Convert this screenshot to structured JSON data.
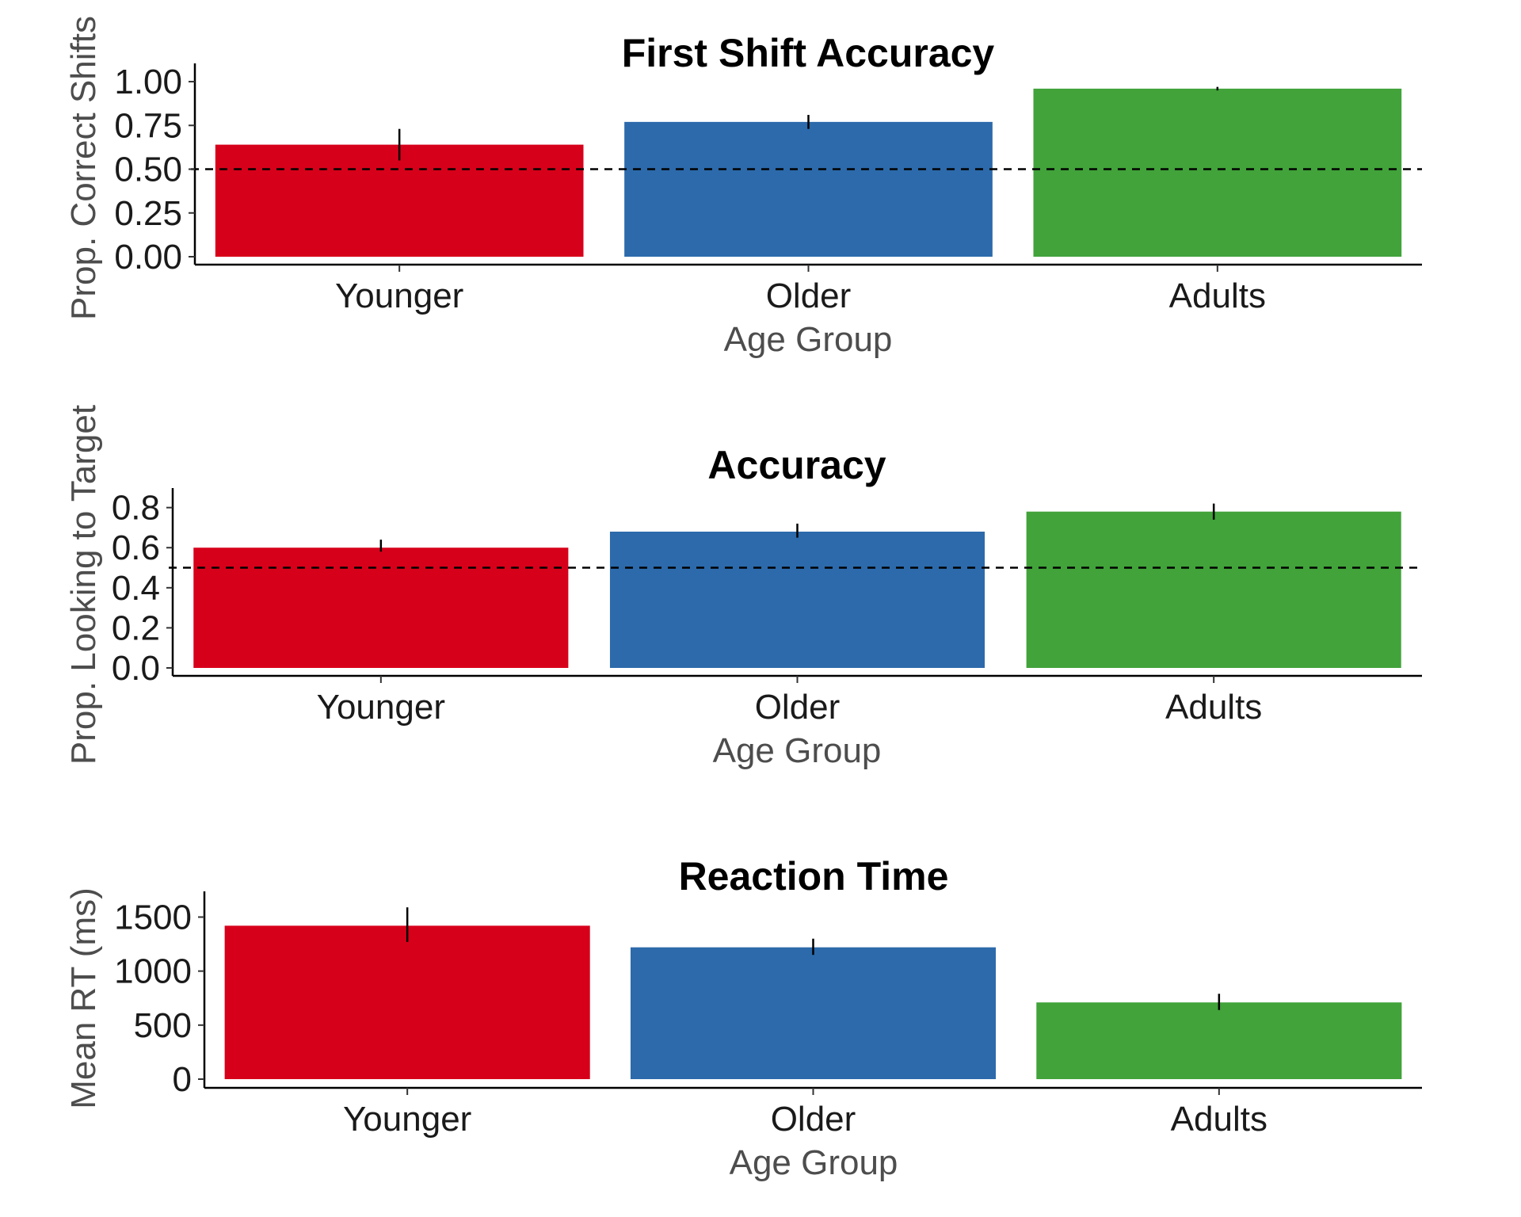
{
  "chart_data": [
    {
      "type": "bar",
      "title": "First Shift Accuracy",
      "xlabel": "Age Group",
      "ylabel": "Prop. Correct Shifts",
      "categories": [
        "Younger",
        "Older",
        "Adults"
      ],
      "values": [
        0.64,
        0.77,
        0.96
      ],
      "error": [
        [
          0.55,
          0.73
        ],
        [
          0.73,
          0.81
        ],
        [
          0.95,
          0.97
        ]
      ],
      "ylim": [
        0,
        1.05
      ],
      "yticks": [
        0,
        0.25,
        0.5,
        0.75,
        1.0
      ],
      "ytick_labels": [
        "0.00",
        "0.25",
        "0.50",
        "0.75",
        "1.00"
      ],
      "reference_line": 0.5,
      "grid": false,
      "colors": [
        "#d7001a",
        "#2c6aab",
        "#41a33a"
      ]
    },
    {
      "type": "bar",
      "title": "Accuracy",
      "xlabel": "Age Group",
      "ylabel": "Prop. Looking to Target",
      "categories": [
        "Younger",
        "Older",
        "Adults"
      ],
      "values": [
        0.6,
        0.68,
        0.78
      ],
      "error": [
        [
          0.58,
          0.64
        ],
        [
          0.65,
          0.72
        ],
        [
          0.74,
          0.82
        ]
      ],
      "ylim": [
        0,
        0.85
      ],
      "yticks": [
        0,
        0.2,
        0.4,
        0.6,
        0.8
      ],
      "ytick_labels": [
        "0.0",
        "0.2",
        "0.4",
        "0.6",
        "0.8"
      ],
      "reference_line": 0.5,
      "grid": false,
      "colors": [
        "#d7001a",
        "#2c6aab",
        "#41a33a"
      ]
    },
    {
      "type": "bar",
      "title": "Reaction Time",
      "xlabel": "Age Group",
      "ylabel": "Mean RT (ms)",
      "categories": [
        "Younger",
        "Older",
        "Adults"
      ],
      "values": [
        1420,
        1220,
        710
      ],
      "error": [
        [
          1270,
          1590
        ],
        [
          1150,
          1300
        ],
        [
          640,
          790
        ]
      ],
      "ylim": [
        0,
        1650
      ],
      "yticks": [
        0,
        500,
        1000,
        1500
      ],
      "ytick_labels": [
        "0",
        "500",
        "1000",
        "1500"
      ],
      "grid": false,
      "colors": [
        "#d7001a",
        "#2c6aab",
        "#41a33a"
      ]
    }
  ]
}
